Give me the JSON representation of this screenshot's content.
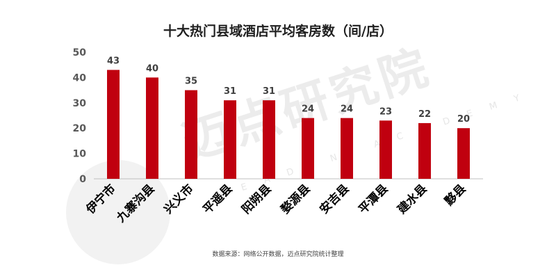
{
  "title": "十大热门县域酒店平均客房数（间/店）",
  "source": "数据来源：网络公开数据，迈点研究院统计整理",
  "watermark": "迈点研究院",
  "watermark_sub": "MEADIN ACADEMY",
  "colors": {
    "bar": "#c0000f",
    "axis": "#bfbfbf",
    "text": "#595959",
    "label": "#404040",
    "category": "#000000"
  },
  "chart_data": {
    "type": "bar",
    "title": "十大热门县域酒店平均客房数（间/店）",
    "categories": [
      "伊宁市",
      "九寨沟县",
      "兴义市",
      "平遥县",
      "阳朔县",
      "婺源县",
      "安吉县",
      "平潭县",
      "建水县",
      "黟县"
    ],
    "values": [
      43,
      40,
      35,
      31,
      31,
      24,
      24,
      23,
      22,
      20
    ],
    "ylim": [
      0,
      50
    ],
    "yticks": [
      0,
      10,
      20,
      30,
      40,
      50
    ],
    "grid": false,
    "xlabel": "",
    "ylabel": ""
  }
}
